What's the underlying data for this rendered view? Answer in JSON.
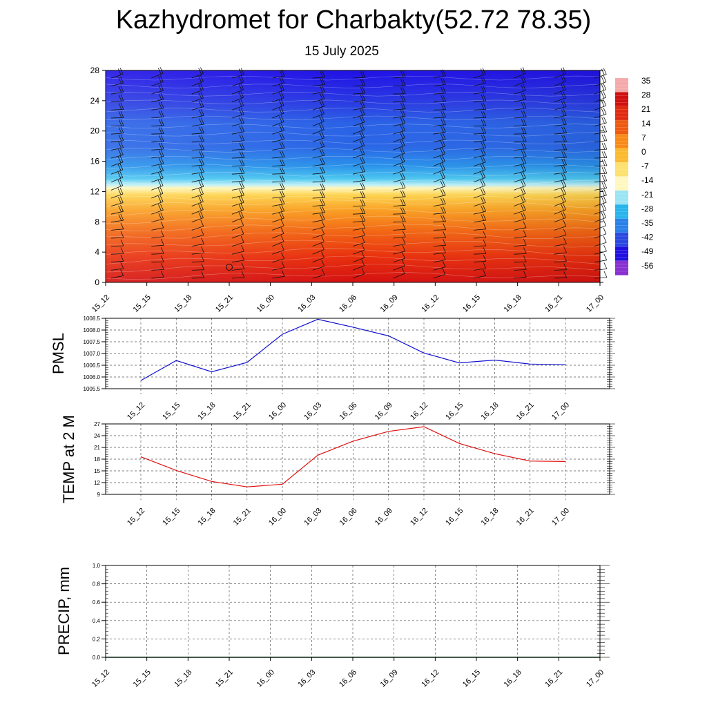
{
  "header": {
    "title": "Kazhydromet for Charbakty(52.72 78.35)",
    "subtitle": "15 July 2025"
  },
  "colors": {
    "pmsl_line": "#1010d0",
    "temp_line": "#e01010",
    "precip_line": "#0a6a20",
    "grid": "#555555"
  },
  "chart_data": [
    {
      "type": "heatmap",
      "name_key": "cross-section",
      "x_labels": [
        "15_12",
        "15_15",
        "15_18",
        "15_21",
        "16_00",
        "16_03",
        "16_06",
        "16_09",
        "16_12",
        "16_15",
        "16_18",
        "16_21",
        "17_00"
      ],
      "y_ticks": [
        0,
        4,
        8,
        12,
        16,
        20,
        24,
        28
      ],
      "ylim": [
        0,
        28
      ],
      "colorbar_labels": [
        "35",
        "28",
        "21",
        "14",
        "7",
        "0",
        "-7",
        "-14",
        "-21",
        "-28",
        "-35",
        "-42",
        "-49",
        "-56"
      ],
      "colorbar_colors": [
        "#f4aaaa",
        "#d01010",
        "#e02a10",
        "#ee5a10",
        "#f88a18",
        "#fbba30",
        "#fde070",
        "#fff8c0",
        "#9ae4f4",
        "#28b4ec",
        "#2a80e8",
        "#2a48e0",
        "#2010e0",
        "#8830d0"
      ],
      "wind_barbs": true
    },
    {
      "type": "line",
      "ylabel": "PMSL",
      "x": [
        "15_12",
        "15_15",
        "15_18",
        "15_21",
        "16_00",
        "16_03",
        "16_06",
        "16_09",
        "16_12",
        "16_15",
        "16_18",
        "16_21",
        "17_00"
      ],
      "ylim": [
        1005.5,
        1008.5
      ],
      "y_ticks": [
        "1005.5",
        "1006.0",
        "1006.5",
        "1007.0",
        "1007.5",
        "1008.0",
        "1008.5"
      ],
      "values": [
        1005.85,
        1006.7,
        1006.22,
        1006.62,
        1007.82,
        1008.46,
        1008.12,
        1007.75,
        1007.02,
        1006.6,
        1006.72,
        1006.55,
        1006.52
      ]
    },
    {
      "type": "line",
      "ylabel": "TEMP at 2 M",
      "x": [
        "15_12",
        "15_15",
        "15_18",
        "15_21",
        "16_00",
        "16_03",
        "16_06",
        "16_09",
        "16_12",
        "16_15",
        "16_18",
        "16_21",
        "17_00"
      ],
      "ylim": [
        9,
        27
      ],
      "y_ticks": [
        "9",
        "12",
        "15",
        "18",
        "21",
        "24",
        "27"
      ],
      "values": [
        18.6,
        15.1,
        12.3,
        10.9,
        11.6,
        19.0,
        22.6,
        25.1,
        26.3,
        22.0,
        19.4,
        17.5,
        17.4
      ]
    },
    {
      "type": "line",
      "ylabel": "PRECIP, mm",
      "x": [
        "15_12",
        "15_15",
        "15_18",
        "15_21",
        "16_00",
        "16_03",
        "16_06",
        "16_09",
        "16_12",
        "16_15",
        "16_18",
        "16_21",
        "17_00"
      ],
      "ylim": [
        0,
        1.0
      ],
      "y_ticks": [
        "0.0",
        "0.2",
        "0.4",
        "0.6",
        "0.8",
        "1.0"
      ],
      "values": [
        0,
        0,
        0,
        0,
        0,
        0,
        0,
        0,
        0,
        0,
        0,
        0,
        0
      ]
    }
  ]
}
